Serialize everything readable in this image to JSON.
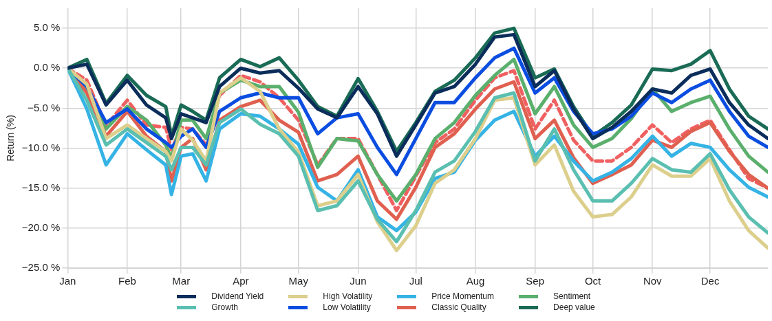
{
  "chart_data": {
    "type": "line",
    "ylabel": "Return (%)",
    "x": [
      "--01-01",
      "--01-11",
      "--01-21",
      "--02-01",
      "--02-11",
      "--02-21",
      "--02-24",
      "--03-01",
      "--03-07",
      "--03-14",
      "--03-21",
      "--04-01",
      "--04-11",
      "--04-21",
      "--05-01",
      "--05-11",
      "--05-21",
      "--06-01",
      "--06-11",
      "--06-21",
      "--07-01",
      "--07-11",
      "--07-21",
      "--08-01",
      "--08-11",
      "--08-21",
      "--09-01",
      "--09-11",
      "--09-21",
      "--10-01",
      "--10-11",
      "--10-21",
      "--11-01",
      "--11-11",
      "--11-21",
      "--12-01",
      "--12-11",
      "--12-21",
      "--12-31"
    ],
    "series": [
      {
        "name": "Dividend Yield",
        "color": "#0b2d5b",
        "values": [
          0,
          0.5,
          -4.6,
          -1.5,
          -4.6,
          -6.2,
          -8.8,
          -5.7,
          -6.2,
          -6.8,
          -2.3,
          0,
          -0.6,
          -0.3,
          -2.5,
          -5.1,
          -6.2,
          -2.3,
          -5.7,
          -11,
          -7.1,
          -3.1,
          -2.3,
          0.5,
          3.9,
          4.2,
          -2.3,
          -0.3,
          -5.1,
          -8.8,
          -7.4,
          -5.4,
          -2.6,
          -3.1,
          -0.9,
          -0.1,
          -4.3,
          -7.1,
          -8.8
        ]
      },
      {
        "name": "Growth",
        "color": "#5abfb0",
        "values": [
          0,
          -4,
          -9.6,
          -7.6,
          -9.3,
          -11,
          -12.7,
          -9.9,
          -9.9,
          -12.1,
          -6.8,
          -5.1,
          -7,
          -8.2,
          -11,
          -17.8,
          -17.2,
          -14.1,
          -18.9,
          -21.7,
          -17.8,
          -13,
          -11.6,
          -7.9,
          -3.7,
          -3.1,
          -11.6,
          -7.6,
          -12.7,
          -16.6,
          -16.6,
          -14.4,
          -11.3,
          -12.7,
          -13,
          -10.7,
          -15.2,
          -18.6,
          -20.6
        ]
      },
      {
        "name": "High Volatility",
        "color": "#dccf8c",
        "values": [
          0,
          -2,
          -8.8,
          -7.1,
          -8.8,
          -10.4,
          -11.6,
          -7.6,
          -9,
          -11.6,
          -3.1,
          -1.2,
          -2.9,
          -7.6,
          -10.5,
          -17.2,
          -16.6,
          -13.3,
          -19.2,
          -22.8,
          -19.7,
          -14.4,
          -12.7,
          -8.8,
          -4,
          -3.7,
          -12.1,
          -9.6,
          -15.4,
          -18.6,
          -18.3,
          -16.1,
          -12.1,
          -13.5,
          -13.5,
          -11.3,
          -16.6,
          -20.3,
          -22.5
        ]
      },
      {
        "name": "Low Volatility",
        "color": "#0a4de0",
        "values": [
          0,
          -2.3,
          -6.8,
          -5.1,
          -7.6,
          -9.3,
          -9.9,
          -8.5,
          -7.6,
          -9.9,
          -5.4,
          -3.7,
          -3.1,
          -3.7,
          -3.7,
          -8.2,
          -6.2,
          -5.7,
          -9.9,
          -13.3,
          -8.8,
          -4.3,
          -4.3,
          -1.2,
          1.3,
          2.5,
          -3.1,
          -1.2,
          -5.4,
          -8.2,
          -7.6,
          -6,
          -3.1,
          -4.3,
          -2.6,
          -1.5,
          -5.4,
          -8.5,
          -9.9
        ]
      },
      {
        "name": "Price Momentum",
        "color": "#35b3e5",
        "values": [
          0,
          -5.1,
          -12.1,
          -8.2,
          -10.2,
          -12.1,
          -15.8,
          -11,
          -10.7,
          -14.1,
          -7.6,
          -5.7,
          -6,
          -7.6,
          -9.5,
          -14.9,
          -16.6,
          -12.7,
          -18.6,
          -20.3,
          -18,
          -13.8,
          -13,
          -9,
          -6.5,
          -5.4,
          -11,
          -8.5,
          -11.6,
          -14.1,
          -13,
          -11.3,
          -8.5,
          -11,
          -9.4,
          -9.9,
          -12.7,
          -14.9,
          -16.1
        ]
      },
      {
        "name": "Classic Quality",
        "color": "#e06050",
        "values": [
          0,
          -3.1,
          -8.5,
          -5.4,
          -8.5,
          -10.4,
          -14.1,
          -9.9,
          -8.8,
          -12.7,
          -6.5,
          -4.8,
          -4,
          -6.5,
          -8,
          -14.1,
          -13.3,
          -11,
          -16.6,
          -18.9,
          -14.9,
          -9.9,
          -8.2,
          -5.1,
          -2.6,
          -1.7,
          -8.8,
          -6.5,
          -11.2,
          -14.4,
          -13.3,
          -12.1,
          -9,
          -9.9,
          -7.9,
          -6.8,
          -10.4,
          -13.3,
          -15
        ]
      },
      {
        "name": "Sentiment",
        "color": "#5aaf6c",
        "values": [
          0,
          -2.6,
          -7.6,
          -4.8,
          -6.5,
          -9.6,
          -11.3,
          -6.5,
          -6.5,
          -8.8,
          -3.1,
          -1.5,
          -2.3,
          -2.3,
          -5.5,
          -12.4,
          -8.8,
          -9.1,
          -13.3,
          -16.6,
          -13.3,
          -8.8,
          -6.8,
          -3.4,
          -0.9,
          1.1,
          -5.7,
          -2.3,
          -7.1,
          -9.9,
          -8.8,
          -6.3,
          -2.6,
          -5.4,
          -4.3,
          -3.5,
          -7.6,
          -11,
          -13
        ]
      },
      {
        "name": "Deep value",
        "color": "#1a6b55",
        "values": [
          0,
          1.1,
          -4.4,
          -0.9,
          -3.4,
          -4.8,
          -8.5,
          -4.6,
          -5.4,
          -6.5,
          -1.2,
          1.1,
          0.2,
          1.3,
          -1.5,
          -4.8,
          -6,
          -1.3,
          -5.4,
          -10.4,
          -6.8,
          -2.9,
          -1.5,
          1.3,
          4.4,
          5,
          -1.2,
          -0.1,
          -4.8,
          -8.5,
          -6.8,
          -4.6,
          -0.1,
          -0.3,
          0.5,
          2.2,
          -2.6,
          -6,
          -7.6
        ]
      },
      {
        "color": "#f06060",
        "line_style": "dashed",
        "values": [
          0,
          -1.5,
          -7.2,
          -4,
          -7.1,
          -7.4,
          -10.2,
          -7.4,
          -7.6,
          -9.6,
          -3.4,
          -0.9,
          -1.7,
          -3.7,
          -6.5,
          -12.1,
          -8.8,
          -8.8,
          -13.3,
          -17.8,
          -13.5,
          -9.3,
          -7.6,
          -4,
          -1.2,
          -0.3,
          -7.6,
          -4,
          -9,
          -11.6,
          -11.6,
          -9.9,
          -7.1,
          -9.3,
          -7.6,
          -6.5,
          -10.2,
          -13.8,
          -15
        ]
      }
    ],
    "xlim": [
      "--01-01",
      "--12-31"
    ],
    "xticks": [
      {
        "value": "--01-01",
        "label": "Jan"
      },
      {
        "value": "--02-01",
        "label": "Feb"
      },
      {
        "value": "--03-01",
        "label": "Mar"
      },
      {
        "value": "--04-01",
        "label": "Apr"
      },
      {
        "value": "--05-01",
        "label": "May"
      },
      {
        "value": "--06-01",
        "label": "Jun"
      },
      {
        "value": "--07-01",
        "label": "Jul"
      },
      {
        "value": "--08-01",
        "label": "Aug"
      },
      {
        "value": "--09-01",
        "label": "Sep"
      },
      {
        "value": "--10-01",
        "label": "Oct"
      },
      {
        "value": "--11-01",
        "label": "Nov"
      },
      {
        "value": "--12-01",
        "label": "Dec"
      }
    ],
    "ylim": [
      -25,
      7.5
    ],
    "yticks": [
      {
        "value": -25,
        "label": "−25.0 %"
      },
      {
        "value": -20,
        "label": "−20.0 %"
      },
      {
        "value": -15,
        "label": "−15.0 %"
      },
      {
        "value": -10,
        "label": "−10.0 %"
      },
      {
        "value": -5,
        "label": "−5.0 %"
      },
      {
        "value": 0,
        "label": "0.0 %"
      },
      {
        "value": 5,
        "label": "5.0 %"
      }
    ],
    "grid": true,
    "legend": "bottom",
    "marker": "none",
    "line_style": "solid"
  }
}
